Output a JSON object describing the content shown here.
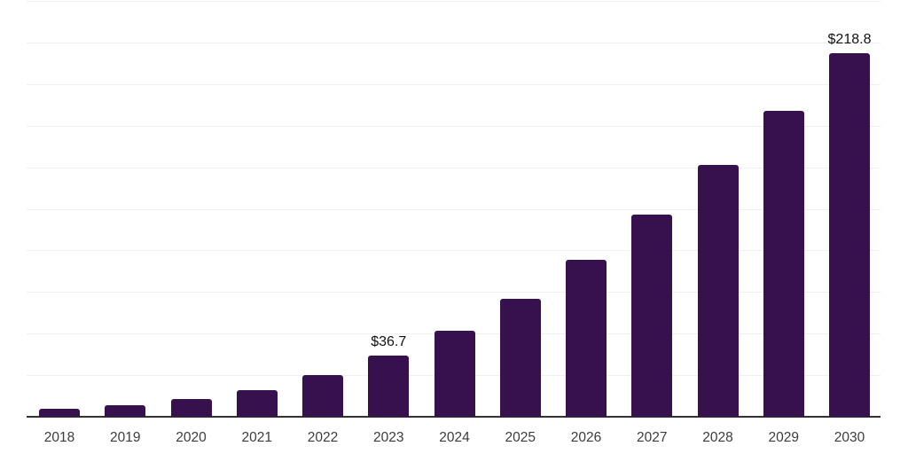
{
  "chart_data": {
    "type": "bar",
    "title": "",
    "xlabel": "",
    "ylabel": "",
    "categories": [
      "2018",
      "2019",
      "2020",
      "2021",
      "2022",
      "2023",
      "2024",
      "2025",
      "2026",
      "2027",
      "2028",
      "2029",
      "2030"
    ],
    "values": [
      4.8,
      7.0,
      10.8,
      16.0,
      24.8,
      36.7,
      51.8,
      71.0,
      94.2,
      121.7,
      151.4,
      183.9,
      218.8
    ],
    "value_labels": {
      "2023": "$36.7",
      "2030": "$218.8"
    },
    "ylim": [
      0,
      250
    ],
    "grid_interval": 25,
    "grid": true,
    "y_tick_labels_visible": false,
    "legend_visible": false,
    "colors": {
      "bar": "#36114e",
      "gridline": "#f0f0f2",
      "axis_line": "#333333",
      "tick_label": "#3c3c3c",
      "value_label": "#111111",
      "background": "#ffffff"
    }
  }
}
